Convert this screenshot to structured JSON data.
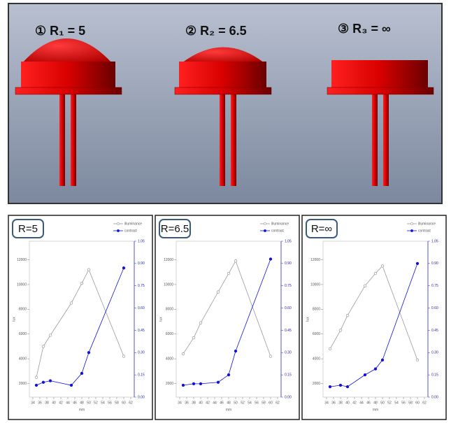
{
  "panel_labels": [
    "① R₁ = 5",
    "② R₂ = 6.5",
    "③ R₃ = ∞"
  ],
  "chart_data": [
    {
      "type": "line",
      "title": "R=5",
      "xlabel": "mm",
      "ylabel": "lux",
      "legend": "upper right",
      "x": [
        35,
        37,
        39,
        45,
        48,
        50,
        60
      ],
      "series": [
        {
          "name": "illuminance",
          "color": "#9a9a9a",
          "values": [
            2500,
            5000,
            5900,
            8500,
            10100,
            11200,
            4200
          ]
        },
        {
          "name": "contrast",
          "color": "#1010e0",
          "axis": "y2",
          "values": [
            0.08,
            0.1,
            0.11,
            0.08,
            0.16,
            0.3,
            0.87
          ]
        }
      ],
      "xlim": [
        33,
        63
      ],
      "xticks": [
        34,
        36,
        38,
        40,
        42,
        44,
        46,
        48,
        50,
        52,
        54,
        56,
        58,
        60,
        62
      ],
      "ylim": [
        900,
        13500
      ],
      "yticks": [
        2000,
        4000,
        6000,
        8000,
        10000,
        12000
      ],
      "y2lim": [
        0,
        1.05
      ],
      "y2ticks": [
        {
          "value": 0,
          "label": "0.00"
        },
        0.15,
        {
          "value": 0.3,
          "label": "0.30"
        },
        0.45,
        {
          "value": 0.6,
          "label": "0.60"
        },
        0.75,
        {
          "value": 0.9,
          "label": "0.90"
        },
        1.05
      ]
    },
    {
      "type": "line",
      "title": "R=6.5",
      "xlabel": "mm",
      "ylabel": "lux",
      "legend": "upper right",
      "x": [
        35,
        38,
        40,
        45,
        48,
        50,
        60
      ],
      "series": [
        {
          "name": "illuminance",
          "color": "#9a9a9a",
          "values": [
            4400,
            5700,
            6900,
            9400,
            10900,
            11900,
            4200
          ]
        },
        {
          "name": "contrast",
          "color": "#1010e0",
          "axis": "y2",
          "values": [
            0.08,
            0.09,
            0.09,
            0.1,
            0.15,
            0.31,
            0.93
          ]
        }
      ],
      "xlim": [
        33,
        63
      ],
      "xticks": [
        34,
        36,
        38,
        40,
        42,
        44,
        46,
        48,
        50,
        52,
        54,
        56,
        58,
        60,
        62
      ],
      "ylim": [
        900,
        13500
      ],
      "yticks": [
        2000,
        4000,
        6000,
        8000,
        10000,
        12000
      ],
      "y2lim": [
        0,
        1.05
      ],
      "y2ticks": [
        {
          "value": 0,
          "label": "0.00"
        },
        0.15,
        {
          "value": 0.3,
          "label": "0.30"
        },
        0.45,
        {
          "value": 0.6,
          "label": "0.60"
        },
        0.75,
        {
          "value": 0.9,
          "label": "0.90"
        },
        1.05
      ]
    },
    {
      "type": "line",
      "title": "R=∞",
      "xlabel": "mm",
      "ylabel": "lux",
      "legend": "upper right",
      "x": [
        35,
        38,
        40,
        45,
        48,
        50,
        60
      ],
      "series": [
        {
          "name": "illuminance",
          "color": "#9a9a9a",
          "values": [
            4800,
            6300,
            7500,
            9900,
            10900,
            11500,
            3900
          ]
        },
        {
          "name": "contrast",
          "color": "#1010e0",
          "axis": "y2",
          "values": [
            0.07,
            0.08,
            0.07,
            0.15,
            0.19,
            0.25,
            0.9
          ]
        }
      ],
      "xlim": [
        33,
        63
      ],
      "xticks": [
        34,
        36,
        38,
        40,
        42,
        44,
        46,
        48,
        50,
        52,
        54,
        56,
        58,
        60,
        62
      ],
      "ylim": [
        900,
        13500
      ],
      "yticks": [
        2000,
        4000,
        6000,
        8000,
        10000,
        12000
      ],
      "y2lim": [
        0,
        1.05
      ],
      "y2ticks": [
        {
          "value": 0,
          "label": "0.00"
        },
        0.15,
        {
          "value": 0.3,
          "label": "0.30"
        },
        0.45,
        {
          "value": 0.6,
          "label": "0.60"
        },
        0.75,
        {
          "value": 0.9,
          "label": "0.90"
        },
        1.05
      ]
    }
  ]
}
